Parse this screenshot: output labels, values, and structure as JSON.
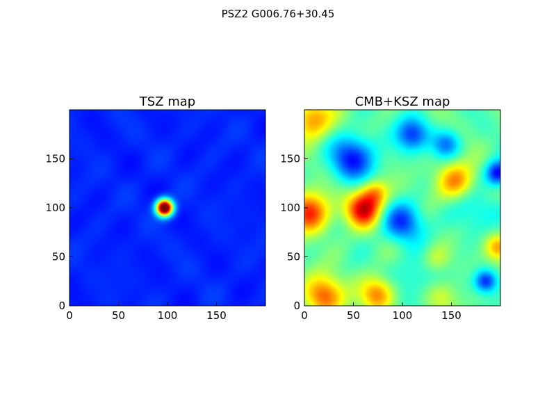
{
  "figure": {
    "suptitle": "PSZ2 G006.76+30.45"
  },
  "chart_data": [
    {
      "type": "heatmap",
      "title": "TSZ map",
      "colormap": "jet",
      "grid_size": [
        200,
        200
      ],
      "xlim": [
        0,
        200
      ],
      "ylim": [
        0,
        200
      ],
      "xticks": [
        0,
        50,
        100,
        150
      ],
      "yticks": [
        0,
        50,
        100,
        150
      ],
      "xlabel": "",
      "ylabel": "",
      "background_level": 0.16,
      "features": [
        {
          "x": 97,
          "y": 100,
          "sigma": 6,
          "value": 1.0,
          "description": "central cluster peak"
        }
      ]
    },
    {
      "type": "heatmap",
      "title": "CMB+KSZ map",
      "colormap": "jet",
      "grid_size": [
        200,
        200
      ],
      "xlim": [
        0,
        200
      ],
      "ylim": [
        0,
        200
      ],
      "xticks": [
        0,
        50,
        100,
        150
      ],
      "yticks": [
        0,
        50,
        100,
        150
      ],
      "xlabel": "",
      "ylabel": "",
      "background_level": 0.47,
      "features": [
        {
          "x": 8,
          "y": 190,
          "sigma": 14,
          "value": 0.28
        },
        {
          "x": 5,
          "y": 95,
          "sigma": 14,
          "value": 0.38
        },
        {
          "x": 60,
          "y": 98,
          "sigma": 12,
          "value": 0.42
        },
        {
          "x": 72,
          "y": 115,
          "sigma": 10,
          "value": 0.25
        },
        {
          "x": 155,
          "y": 128,
          "sigma": 13,
          "value": 0.28
        },
        {
          "x": 20,
          "y": 10,
          "sigma": 14,
          "value": 0.32
        },
        {
          "x": 75,
          "y": 12,
          "sigma": 12,
          "value": 0.28
        },
        {
          "x": 198,
          "y": 60,
          "sigma": 9,
          "value": 0.22
        },
        {
          "x": 135,
          "y": 48,
          "sigma": 10,
          "value": 0.12
        },
        {
          "x": 140,
          "y": 10,
          "sigma": 12,
          "value": 0.1
        },
        {
          "x": 50,
          "y": 150,
          "sigma": 16,
          "value": -0.32
        },
        {
          "x": 110,
          "y": 175,
          "sigma": 12,
          "value": -0.28
        },
        {
          "x": 145,
          "y": 165,
          "sigma": 10,
          "value": -0.22
        },
        {
          "x": 198,
          "y": 135,
          "sigma": 9,
          "value": -0.38
        },
        {
          "x": 100,
          "y": 85,
          "sigma": 14,
          "value": -0.28
        },
        {
          "x": 185,
          "y": 25,
          "sigma": 8,
          "value": -0.3
        },
        {
          "x": 115,
          "y": 30,
          "sigma": 16,
          "value": -0.1
        },
        {
          "x": 170,
          "y": 95,
          "sigma": 16,
          "value": -0.1
        }
      ]
    }
  ]
}
